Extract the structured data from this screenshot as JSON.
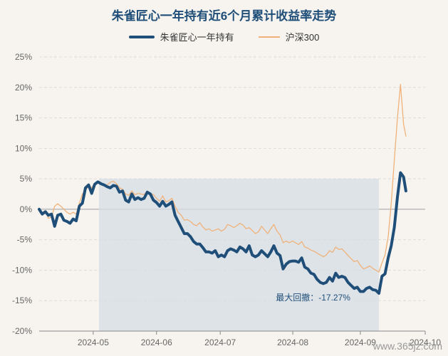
{
  "title": "朱雀匠心一年持有近6个月累计收益率走势",
  "legend": {
    "series_a": "朱雀匠心一年持有",
    "series_b": "沪深300"
  },
  "max_drawdown_label": "最大回撤：-17.27%",
  "footer_watermark": "www.365jz.com",
  "colors": {
    "fund": "#1f4e79",
    "index": "#f0b27a",
    "drawdown_area": "#d6dde6",
    "zero_line": "#c8c8c8"
  },
  "chart_data": {
    "type": "line",
    "title": "朱雀匠心一年持有近6个月累计收益率走势",
    "xlabel": "",
    "ylabel": "",
    "y_unit": "%",
    "ylim": [
      -20,
      25
    ],
    "yticks": [
      25,
      20,
      15,
      10,
      5,
      0,
      -5,
      -10,
      -15,
      -20
    ],
    "ytick_labels": [
      "25%",
      "20%",
      "15%",
      "10%",
      "5%",
      "0%",
      "-5%",
      "-10%",
      "-15%",
      "-20%"
    ],
    "xlim": [
      0,
      100
    ],
    "xticks": [
      {
        "x": 14,
        "label": "2024-05"
      },
      {
        "x": 30.4,
        "label": "2024-06"
      },
      {
        "x": 46.9,
        "label": "2024-07"
      },
      {
        "x": 65.7,
        "label": "2024-08"
      },
      {
        "x": 83.2,
        "label": "2024-09"
      },
      {
        "x": 100,
        "label": "2024-10"
      }
    ],
    "drawdown_region": {
      "x_start": 15.5,
      "x_end": 88,
      "label": "最大回撤：-17.27%"
    },
    "series": [
      {
        "name": "朱雀匠心一年持有",
        "points": [
          [
            0,
            0
          ],
          [
            0.8,
            -0.8
          ],
          [
            1.6,
            -0.4
          ],
          [
            2.4,
            -1
          ],
          [
            3.2,
            -0.8
          ],
          [
            4,
            -2.8
          ],
          [
            4.8,
            -1
          ],
          [
            5.6,
            -0.8
          ],
          [
            6.4,
            -1.8
          ],
          [
            7.2,
            -2
          ],
          [
            8,
            -2.3
          ],
          [
            8.8,
            -1.6
          ],
          [
            9.6,
            -1.9
          ],
          [
            10.4,
            0.5
          ],
          [
            11.2,
            1
          ],
          [
            12,
            3.5
          ],
          [
            12.8,
            4
          ],
          [
            13.6,
            2.6
          ],
          [
            14.4,
            4.1
          ],
          [
            15.2,
            4.5
          ],
          [
            16,
            4.2
          ],
          [
            16.8,
            4
          ],
          [
            17.6,
            3.7
          ],
          [
            18.4,
            3.5
          ],
          [
            19.2,
            3.9
          ],
          [
            20,
            3.8
          ],
          [
            20.8,
            2.8
          ],
          [
            21.6,
            3
          ],
          [
            22.4,
            1.5
          ],
          [
            23.2,
            1.2
          ],
          [
            24,
            2.5
          ],
          [
            24.8,
            1.6
          ],
          [
            25.6,
            1.9
          ],
          [
            26.4,
            1.6
          ],
          [
            27.2,
            1.8
          ],
          [
            28,
            2.8
          ],
          [
            28.8,
            2.5
          ],
          [
            29.6,
            1.5
          ],
          [
            30.4,
            1.1
          ],
          [
            31.2,
            0.5
          ],
          [
            32,
            1.3
          ],
          [
            32.8,
            0.5
          ],
          [
            33.6,
            0.8
          ],
          [
            34.4,
            1.2
          ],
          [
            35.2,
            -1
          ],
          [
            36,
            -2
          ],
          [
            36.8,
            -3
          ],
          [
            37.6,
            -4
          ],
          [
            38.4,
            -4
          ],
          [
            39.2,
            -4.5
          ],
          [
            40,
            -5.3
          ],
          [
            40.8,
            -5.7
          ],
          [
            41.6,
            -5.7
          ],
          [
            42.4,
            -6.3
          ],
          [
            43.2,
            -7
          ],
          [
            44,
            -7
          ],
          [
            44.8,
            -7.2
          ],
          [
            45.6,
            -6.8
          ],
          [
            46.4,
            -7.8
          ],
          [
            47.2,
            -7.5
          ],
          [
            48,
            -7.8
          ],
          [
            48.8,
            -6.8
          ],
          [
            49.6,
            -6.5
          ],
          [
            50.4,
            -6.7
          ],
          [
            51.2,
            -7
          ],
          [
            52,
            -6.2
          ],
          [
            52.8,
            -6.5
          ],
          [
            53.6,
            -7
          ],
          [
            54.4,
            -6
          ],
          [
            55.2,
            -7.5
          ],
          [
            56,
            -7.8
          ],
          [
            56.8,
            -7.5
          ],
          [
            57.6,
            -6.8
          ],
          [
            58.4,
            -7.3
          ],
          [
            59.2,
            -7.8
          ],
          [
            60,
            -7
          ],
          [
            60.8,
            -6
          ],
          [
            61.6,
            -7.2
          ],
          [
            62.4,
            -7.6
          ],
          [
            63.2,
            -9.8
          ],
          [
            64,
            -9
          ],
          [
            64.8,
            -8.6
          ],
          [
            65.6,
            -8.5
          ],
          [
            66.4,
            -8.5
          ],
          [
            67.2,
            -8.7
          ],
          [
            68,
            -8
          ],
          [
            68.8,
            -9.5
          ],
          [
            69.6,
            -9.8
          ],
          [
            70.4,
            -10.5
          ],
          [
            71.2,
            -10.7
          ],
          [
            72,
            -11.5
          ],
          [
            72.8,
            -12
          ],
          [
            73.6,
            -12.2
          ],
          [
            74.4,
            -12
          ],
          [
            75.2,
            -11.2
          ],
          [
            76,
            -11.8
          ],
          [
            76.8,
            -10.5
          ],
          [
            77.6,
            -11.2
          ],
          [
            78.4,
            -11
          ],
          [
            79.2,
            -11.2
          ],
          [
            80,
            -12
          ],
          [
            80.8,
            -12.5
          ],
          [
            81.6,
            -13
          ],
          [
            82.4,
            -12.8
          ],
          [
            83.2,
            -13.5
          ],
          [
            84,
            -13.5
          ],
          [
            84.8,
            -13
          ],
          [
            85.6,
            -12.8
          ],
          [
            86.4,
            -13.2
          ],
          [
            87.2,
            -13.3
          ],
          [
            88,
            -13.8
          ],
          [
            88.8,
            -11
          ],
          [
            89.6,
            -10.6
          ],
          [
            90.4,
            -8
          ],
          [
            91.2,
            -6
          ],
          [
            92,
            -3
          ],
          [
            92.8,
            2
          ],
          [
            93.6,
            6
          ],
          [
            94.4,
            5.3
          ],
          [
            95,
            3
          ]
        ]
      },
      {
        "name": "沪深300",
        "points": [
          [
            0,
            0
          ],
          [
            0.8,
            -0.5
          ],
          [
            1.6,
            -0.3
          ],
          [
            2.4,
            -1.5
          ],
          [
            3.2,
            -1.3
          ],
          [
            4,
            0.5
          ],
          [
            4.8,
            0.9
          ],
          [
            5.6,
            0.5
          ],
          [
            6.4,
            0
          ],
          [
            7.2,
            -0.5
          ],
          [
            8,
            -0.8
          ],
          [
            8.8,
            -0.5
          ],
          [
            9.6,
            -0.8
          ],
          [
            10.4,
            1
          ],
          [
            11.2,
            2.5
          ],
          [
            12,
            3
          ],
          [
            12.8,
            4
          ],
          [
            13.6,
            3.5
          ],
          [
            14.4,
            4.3
          ],
          [
            15.2,
            4.6
          ],
          [
            16,
            4.3
          ],
          [
            16.8,
            4.1
          ],
          [
            17.6,
            4
          ],
          [
            18.4,
            4.4
          ],
          [
            19.2,
            4.6
          ],
          [
            20,
            4.2
          ],
          [
            20.8,
            3.5
          ],
          [
            21.6,
            3.3
          ],
          [
            22.4,
            2.5
          ],
          [
            23.2,
            2.3
          ],
          [
            24,
            3
          ],
          [
            24.8,
            2.4
          ],
          [
            25.6,
            2.6
          ],
          [
            26.4,
            2.5
          ],
          [
            27.2,
            2.4
          ],
          [
            28,
            3
          ],
          [
            28.8,
            2.6
          ],
          [
            29.6,
            2.4
          ],
          [
            30.4,
            1.8
          ],
          [
            31.2,
            1.3
          ],
          [
            32,
            2.2
          ],
          [
            32.8,
            1.2
          ],
          [
            33.6,
            1.4
          ],
          [
            34.4,
            1.8
          ],
          [
            35.2,
            0.5
          ],
          [
            36,
            -0.5
          ],
          [
            36.8,
            -1
          ],
          [
            37.6,
            -1.8
          ],
          [
            38.4,
            -1.7
          ],
          [
            39.2,
            -2
          ],
          [
            40,
            -2.5
          ],
          [
            40.8,
            -2.7
          ],
          [
            41.6,
            -2.2
          ],
          [
            42.4,
            -2.9
          ],
          [
            43.2,
            -3.4
          ],
          [
            44,
            -3.2
          ],
          [
            44.8,
            -3.6
          ],
          [
            45.6,
            -3.4
          ],
          [
            46.4,
            -3.2
          ],
          [
            47.2,
            -3.6
          ],
          [
            48,
            -3.3
          ],
          [
            48.8,
            -2.5
          ],
          [
            49.6,
            -2.7
          ],
          [
            50.4,
            -3
          ],
          [
            51.2,
            -2.7
          ],
          [
            52,
            -2.3
          ],
          [
            52.8,
            -2.6
          ],
          [
            53.6,
            -3.2
          ],
          [
            54.4,
            -3
          ],
          [
            55.2,
            -3.5
          ],
          [
            56,
            -4
          ],
          [
            56.8,
            -3.7
          ],
          [
            57.6,
            -2.8
          ],
          [
            58.4,
            -3.4
          ],
          [
            59.2,
            -4
          ],
          [
            60,
            -3.2
          ],
          [
            60.8,
            -2.5
          ],
          [
            61.6,
            -3.6
          ],
          [
            62.4,
            -4.2
          ],
          [
            63.2,
            -5.5
          ],
          [
            64,
            -5.2
          ],
          [
            64.8,
            -5.5
          ],
          [
            65.6,
            -5.2
          ],
          [
            66.4,
            -5.5
          ],
          [
            67.2,
            -5.8
          ],
          [
            68,
            -5.3
          ],
          [
            68.8,
            -6.2
          ],
          [
            69.6,
            -6.4
          ],
          [
            70.4,
            -6.7
          ],
          [
            71.2,
            -6.9
          ],
          [
            72,
            -7.2
          ],
          [
            72.8,
            -7.5
          ],
          [
            73.6,
            -7.8
          ],
          [
            74.4,
            -7.5
          ],
          [
            75.2,
            -6.8
          ],
          [
            76,
            -7.1
          ],
          [
            76.8,
            -6.2
          ],
          [
            77.6,
            -6.6
          ],
          [
            78.4,
            -6.5
          ],
          [
            79.2,
            -7
          ],
          [
            80,
            -7.6
          ],
          [
            80.8,
            -8.1
          ],
          [
            81.6,
            -8.6
          ],
          [
            82.4,
            -8.4
          ],
          [
            83.2,
            -9.2
          ],
          [
            84,
            -9.8
          ],
          [
            84.8,
            -9.6
          ],
          [
            85.6,
            -9.3
          ],
          [
            86.4,
            -9.7
          ],
          [
            87.2,
            -10
          ],
          [
            88,
            -10.3
          ],
          [
            88.8,
            -8.8
          ],
          [
            89.6,
            -7.5
          ],
          [
            90.4,
            -4.5
          ],
          [
            91.2,
            1
          ],
          [
            92,
            8
          ],
          [
            92.8,
            15
          ],
          [
            93.6,
            20.5
          ],
          [
            94.4,
            14
          ],
          [
            95,
            12
          ]
        ]
      }
    ]
  }
}
